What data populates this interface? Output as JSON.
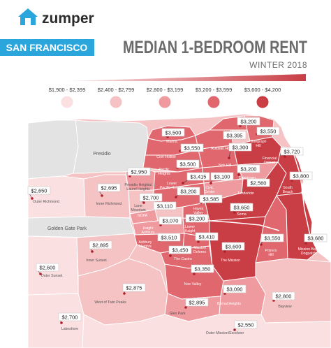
{
  "brand": {
    "name": "zumper"
  },
  "header": {
    "city": "SAN FRANCISCO",
    "title": "MEDIAN 1-BEDROOM RENT",
    "subtitle": "WINTER 2018"
  },
  "legend": {
    "ranges": [
      {
        "label": "$1,900 - $2,399",
        "color": "#fbe0e1"
      },
      {
        "label": "$2,400 - $2,799",
        "color": "#f6c3c5"
      },
      {
        "label": "$2,800 - $3,199",
        "color": "#ee9a9e"
      },
      {
        "label": "$3,200 - $3,599",
        "color": "#e0676d"
      },
      {
        "label": "$3,600 - $4,200",
        "color": "#c93d45"
      }
    ]
  },
  "neighborhoods": [
    {
      "id": "north-beach",
      "name": "North Beach",
      "price": "$3,200"
    },
    {
      "id": "telegraph-hill",
      "name": "Telegraph Hill",
      "price": "$3,550"
    },
    {
      "id": "russian-hill",
      "name": "Russian Hill",
      "price": "$3,395"
    },
    {
      "id": "marina",
      "name": "Marina",
      "price": "$3,500"
    },
    {
      "id": "cow-hollow",
      "name": "Cow Hollow",
      "price": "$3,550"
    },
    {
      "id": "nob-hill",
      "name": "Nob Hill",
      "price": "$3,300"
    },
    {
      "id": "financial-district",
      "name": "Financial District",
      "price": "$3,720"
    },
    {
      "id": "pacific-heights",
      "name": "Pacific Heights",
      "price": "$3,500"
    },
    {
      "id": "lower-pacific-heights",
      "name": "Lower Pacific Heights",
      "price": "$3,415"
    },
    {
      "id": "downtown",
      "name": "Downtown",
      "price": "$3,200"
    },
    {
      "id": "civic-center",
      "name": "Civic Center",
      "price": "$3,100"
    },
    {
      "id": "tenderloin",
      "name": "Tenderloin",
      "price": "$2,560"
    },
    {
      "id": "south-beach",
      "name": "South Beach",
      "price": "$3,800"
    },
    {
      "id": "presidio-heights",
      "name": "Presidio Heights / Laurel Heights",
      "price": "$2,950"
    },
    {
      "id": "lone-mountain",
      "name": "Lone Mountain",
      "price": "$2,700"
    },
    {
      "id": "western-addition",
      "name": "Western Addition",
      "price": "$3,200"
    },
    {
      "id": "hayes-valley",
      "name": "Hayes Valley",
      "price": "$3,585"
    },
    {
      "id": "nopa",
      "name": "NOPA",
      "price": "$3,110"
    },
    {
      "id": "soma",
      "name": "Soma",
      "price": "$3,650"
    },
    {
      "id": "haight-ashbury",
      "name": "Haight Ashbury",
      "price": "$3,070"
    },
    {
      "id": "lower-haight",
      "name": "Lower Haight",
      "price": "$3,200"
    },
    {
      "id": "ashbury-heights",
      "name": "Ashbury Heights",
      "price": "$3,510"
    },
    {
      "id": "mission-dolores",
      "name": "Mission Dolores",
      "price": "$3,410"
    },
    {
      "id": "the-castro",
      "name": "The Castro",
      "price": "$3,450"
    },
    {
      "id": "the-mission",
      "name": "The Mission",
      "price": "$3,600"
    },
    {
      "id": "potrero-hill",
      "name": "Potrero Hill",
      "price": "$3,550"
    },
    {
      "id": "mission-bay",
      "name": "Mission Bay / Dogpatch",
      "price": "$3,680"
    },
    {
      "id": "outer-richmond",
      "name": "Outer Richmond",
      "price": "$2,650"
    },
    {
      "id": "inner-richmond",
      "name": "Inner Richmond",
      "price": "$2,695"
    },
    {
      "id": "inner-sunset",
      "name": "Inner Sunset",
      "price": "$2,895"
    },
    {
      "id": "outer-sunset",
      "name": "Outer Sunset",
      "price": "$2,600"
    },
    {
      "id": "noe-valley",
      "name": "Noe Valley",
      "price": "$3,350"
    },
    {
      "id": "bernal-heights",
      "name": "Bernal Heights",
      "price": "$3,090"
    },
    {
      "id": "west-of-twin-peaks",
      "name": "West of Twin Peaks",
      "price": "$2,875"
    },
    {
      "id": "glen-park",
      "name": "Glen Park",
      "price": "$2,895"
    },
    {
      "id": "bayview",
      "name": "Bayview",
      "price": "$2,800"
    },
    {
      "id": "lakeshore",
      "name": "Lakeshore",
      "price": "$2,700"
    },
    {
      "id": "outer-mission",
      "name": "Outer Mission/Excelsior",
      "price": "$2,550"
    }
  ],
  "landmarks": [
    {
      "id": "presidio",
      "name": "Presidio"
    },
    {
      "id": "golden-gate-park",
      "name": "Golden Gate Park"
    }
  ],
  "colors": {
    "brand_blue": "#2aa6dd",
    "title_gray": "#6b6b6b",
    "water": "#ffffff",
    "park": "#e3e3e3",
    "outline": "#ffffff"
  }
}
